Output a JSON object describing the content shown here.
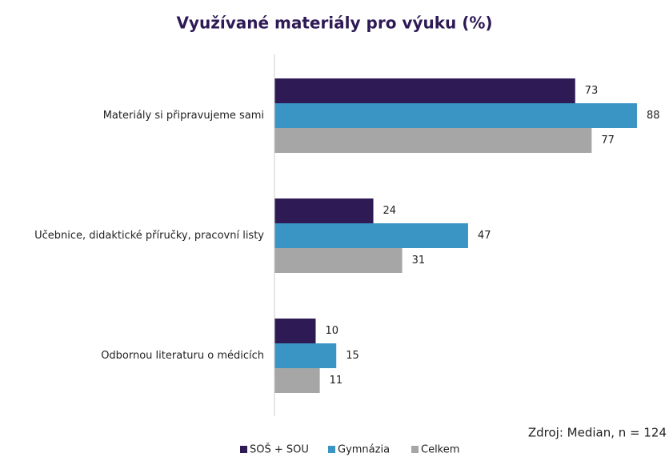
{
  "chart_data": {
    "type": "bar",
    "orientation": "horizontal",
    "title": "Využívané materiály pro výuku (%)",
    "source": "Zdroj: Median, n = 124",
    "categories": [
      "Materiály si připravujeme sami",
      "Učebnice, didaktické příručky, pracovní listy",
      "Odbornou literaturu o médicích"
    ],
    "series": [
      {
        "name": "SOŠ + SOU",
        "color": "#2e1a55",
        "values": [
          73,
          24,
          10
        ]
      },
      {
        "name": "Gymnázia",
        "color": "#3a94c4",
        "values": [
          88,
          47,
          15
        ]
      },
      {
        "name": "Celkem",
        "color": "#a6a6a6",
        "values": [
          77,
          31,
          11
        ]
      }
    ],
    "xlim": [
      0,
      95
    ],
    "legend": "bottom"
  }
}
